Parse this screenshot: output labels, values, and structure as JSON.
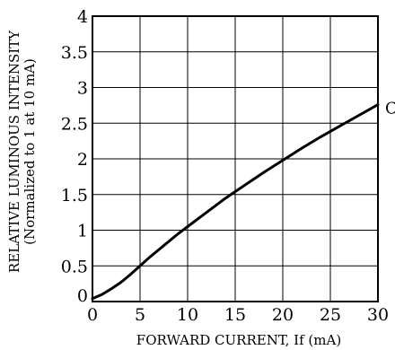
{
  "chart_data": {
    "type": "line",
    "xlabel": "FORWARD CURRENT, If (mA)",
    "ylabel": "RELATIVE LUMINOUS INTENSITY",
    "ylabel2": "(Normalized to 1 at 10 mA)",
    "xlim": [
      0,
      30
    ],
    "ylim": [
      0,
      4
    ],
    "x_ticks": [
      0,
      5,
      10,
      15,
      20,
      25,
      30
    ],
    "y_ticks": [
      0,
      0.5,
      1,
      1.5,
      2,
      2.5,
      3,
      3.5,
      4
    ],
    "y_tick_labels": [
      "0",
      "0.5",
      "1",
      "1.5",
      "2",
      "2.5",
      "3",
      "3.5",
      "4"
    ],
    "grid": true,
    "series": [
      {
        "name": "C",
        "x": [
          0,
          1,
          2,
          3,
          4,
          5,
          6,
          7,
          8,
          9,
          10,
          12,
          14,
          16,
          18,
          20,
          22,
          24,
          26,
          28,
          30
        ],
        "y": [
          0.04,
          0.1,
          0.18,
          0.27,
          0.38,
          0.5,
          0.62,
          0.73,
          0.84,
          0.95,
          1.05,
          1.25,
          1.45,
          1.63,
          1.81,
          1.98,
          2.15,
          2.31,
          2.46,
          2.61,
          2.76
        ]
      }
    ]
  }
}
